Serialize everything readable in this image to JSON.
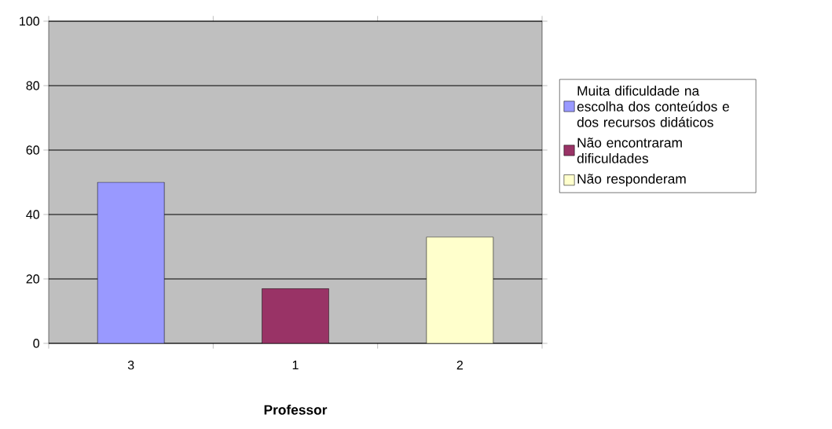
{
  "chart_data": {
    "type": "bar",
    "xlabel": "Professor",
    "categories": [
      "3",
      "1",
      "2"
    ],
    "series": [
      {
        "name": "Muita dificuldade na escolha dos conteúdos e dos recursos didáticos",
        "color": "#9999ff",
        "values": [
          50,
          null,
          null
        ]
      },
      {
        "name": "Não encontraram dificuldades",
        "color": "#993366",
        "values": [
          null,
          17,
          null
        ]
      },
      {
        "name": "Não responderam",
        "color": "#ffffcc",
        "values": [
          null,
          null,
          33
        ]
      }
    ],
    "ylim": [
      0,
      100
    ],
    "yticks": [
      0,
      20,
      40,
      60,
      80,
      100
    ],
    "grid": "y",
    "legend": "right"
  }
}
